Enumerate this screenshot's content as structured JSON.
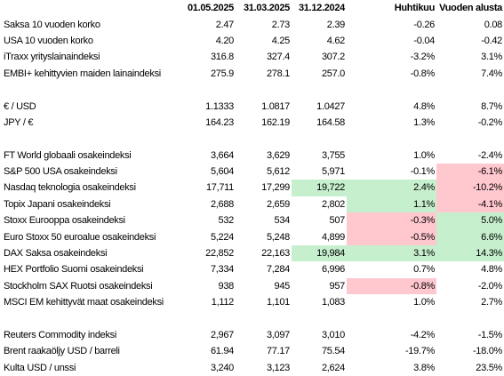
{
  "table": {
    "columns": [
      "01.05.2025",
      "31.03.2025",
      "31.12.2024",
      "Huhtikuu",
      "Vuoden alusta"
    ],
    "rows": [
      {
        "label": "Saksa 10 vuoden korko",
        "values": [
          "2.47",
          "2.73",
          "2.39",
          "-0.26",
          "0.08"
        ]
      },
      {
        "label": "USA 10 vuoden korko",
        "values": [
          "4.20",
          "4.25",
          "4.62",
          "-0.04",
          "-0.42"
        ]
      },
      {
        "label": "iTraxx yrityslainaindeksi",
        "values": [
          "316.8",
          "327.4",
          "307.2",
          "-3.2%",
          "3.1%"
        ]
      },
      {
        "label": "EMBI+ kehittyvien maiden lainaindeksi",
        "values": [
          "275.9",
          "278.1",
          "257.0",
          "-0.8%",
          "7.4%"
        ]
      },
      null,
      {
        "label": "€ / USD",
        "values": [
          "1.1333",
          "1.0817",
          "1.0427",
          "4.8%",
          "8.7%"
        ]
      },
      {
        "label": "JPY / €",
        "values": [
          "164.23",
          "162.19",
          "164.58",
          "1.3%",
          "-0.2%"
        ]
      },
      null,
      {
        "label": "FT World globaali osakeindeksi",
        "values": [
          "3,664",
          "3,629",
          "3,755",
          "1.0%",
          "-2.4%"
        ]
      },
      {
        "label": "S&P 500 USA osakeindeksi",
        "values": [
          "5,604",
          "5,612",
          "5,971",
          "-0.1%",
          "-6.1%"
        ],
        "fills": [
          null,
          null,
          null,
          null,
          "#ffc7ce"
        ]
      },
      {
        "label": "Nasdaq teknologia osakeindeksi",
        "values": [
          "17,711",
          "17,299",
          "19,722",
          "2.4%",
          "-10.2%"
        ],
        "fills": [
          null,
          null,
          "#c6efce",
          "#c6efce",
          "#ffc7ce"
        ]
      },
      {
        "label": "Topix Japani osakeindeksi",
        "values": [
          "2,688",
          "2,659",
          "2,802",
          "1.1%",
          "-4.1%"
        ],
        "fills": [
          null,
          null,
          null,
          "#c6efce",
          "#ffc7ce"
        ]
      },
      {
        "label": "Stoxx Eurooppa osakeindeksi",
        "values": [
          "532",
          "534",
          "507",
          "-0.3%",
          "5.0%"
        ],
        "fills": [
          null,
          null,
          null,
          "#ffc7ce",
          "#c6efce"
        ]
      },
      {
        "label": "Euro Stoxx 50 euroalue osakeindeksi",
        "values": [
          "5,224",
          "5,248",
          "4,899",
          "-0.5%",
          "6.6%"
        ],
        "fills": [
          null,
          null,
          null,
          "#ffc7ce",
          "#c6efce"
        ]
      },
      {
        "label": "DAX Saksa osakeindeksi",
        "values": [
          "22,852",
          "22,163",
          "19,984",
          "3.1%",
          "14.3%"
        ],
        "fills": [
          null,
          null,
          "#c6efce",
          "#c6efce",
          "#c6efce"
        ]
      },
      {
        "label": "HEX Portfolio Suomi osakeindeksi",
        "values": [
          "7,334",
          "7,284",
          "6,996",
          "0.7%",
          "4.8%"
        ]
      },
      {
        "label": "Stockholm SAX Ruotsi osakeindeksi",
        "values": [
          "938",
          "945",
          "957",
          "-0.8%",
          "-2.0%"
        ],
        "fills": [
          null,
          null,
          null,
          "#ffc7ce",
          null
        ]
      },
      {
        "label": "MSCI EM kehittyvät maat osakeindeksi",
        "values": [
          "1,112",
          "1,101",
          "1,083",
          "1.0%",
          "2.7%"
        ]
      },
      null,
      {
        "label": "Reuters Commodity indeksi",
        "values": [
          "2,967",
          "3,097",
          "3,010",
          "-4.2%",
          "-1.5%"
        ]
      },
      {
        "label": "Brent raakaöljy USD / barreli",
        "values": [
          "61.94",
          "77.17",
          "75.54",
          "-19.7%",
          "-18.0%"
        ]
      },
      {
        "label": "Kulta USD / unssi",
        "values": [
          "3,240",
          "3,123",
          "2,624",
          "3.8%",
          "23.5%"
        ]
      }
    ]
  }
}
